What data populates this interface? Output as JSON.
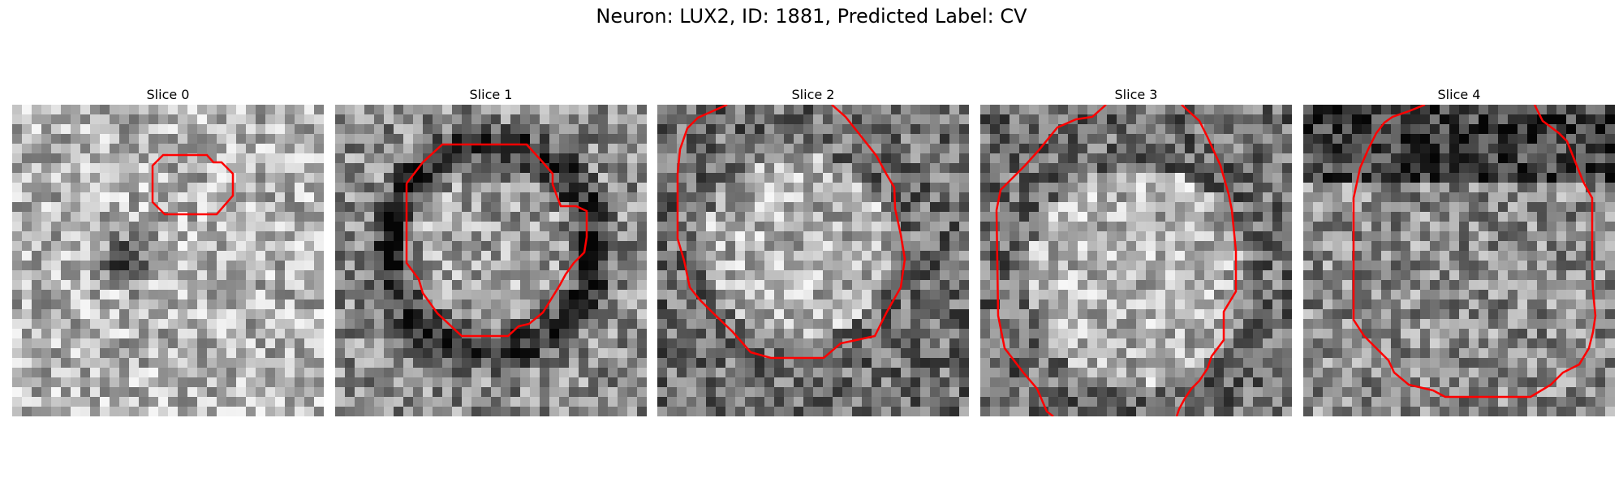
{
  "figure": {
    "title": "Neuron: LUX2, ID: 1881, Predicted Label: CV",
    "panels": [
      {
        "title": "Slice 0",
        "contour_color": "#ff0000",
        "dark_blob": [
          0.37,
          0.5,
          0.12
        ]
      },
      {
        "title": "Slice 1",
        "contour_color": "#ff0000",
        "dark_ring": [
          0.5,
          0.46,
          0.33
        ]
      },
      {
        "title": "Slice 2",
        "contour_color": "#ff0000",
        "bright_center": [
          0.45,
          0.45,
          0.3
        ]
      },
      {
        "title": "Slice 3",
        "contour_color": "#ff0000",
        "bright_center": [
          0.5,
          0.55,
          0.35
        ]
      },
      {
        "title": "Slice 4",
        "contour_color": "#ff0000",
        "dark_top_band": [
          0.0,
          0.25
        ]
      }
    ]
  }
}
